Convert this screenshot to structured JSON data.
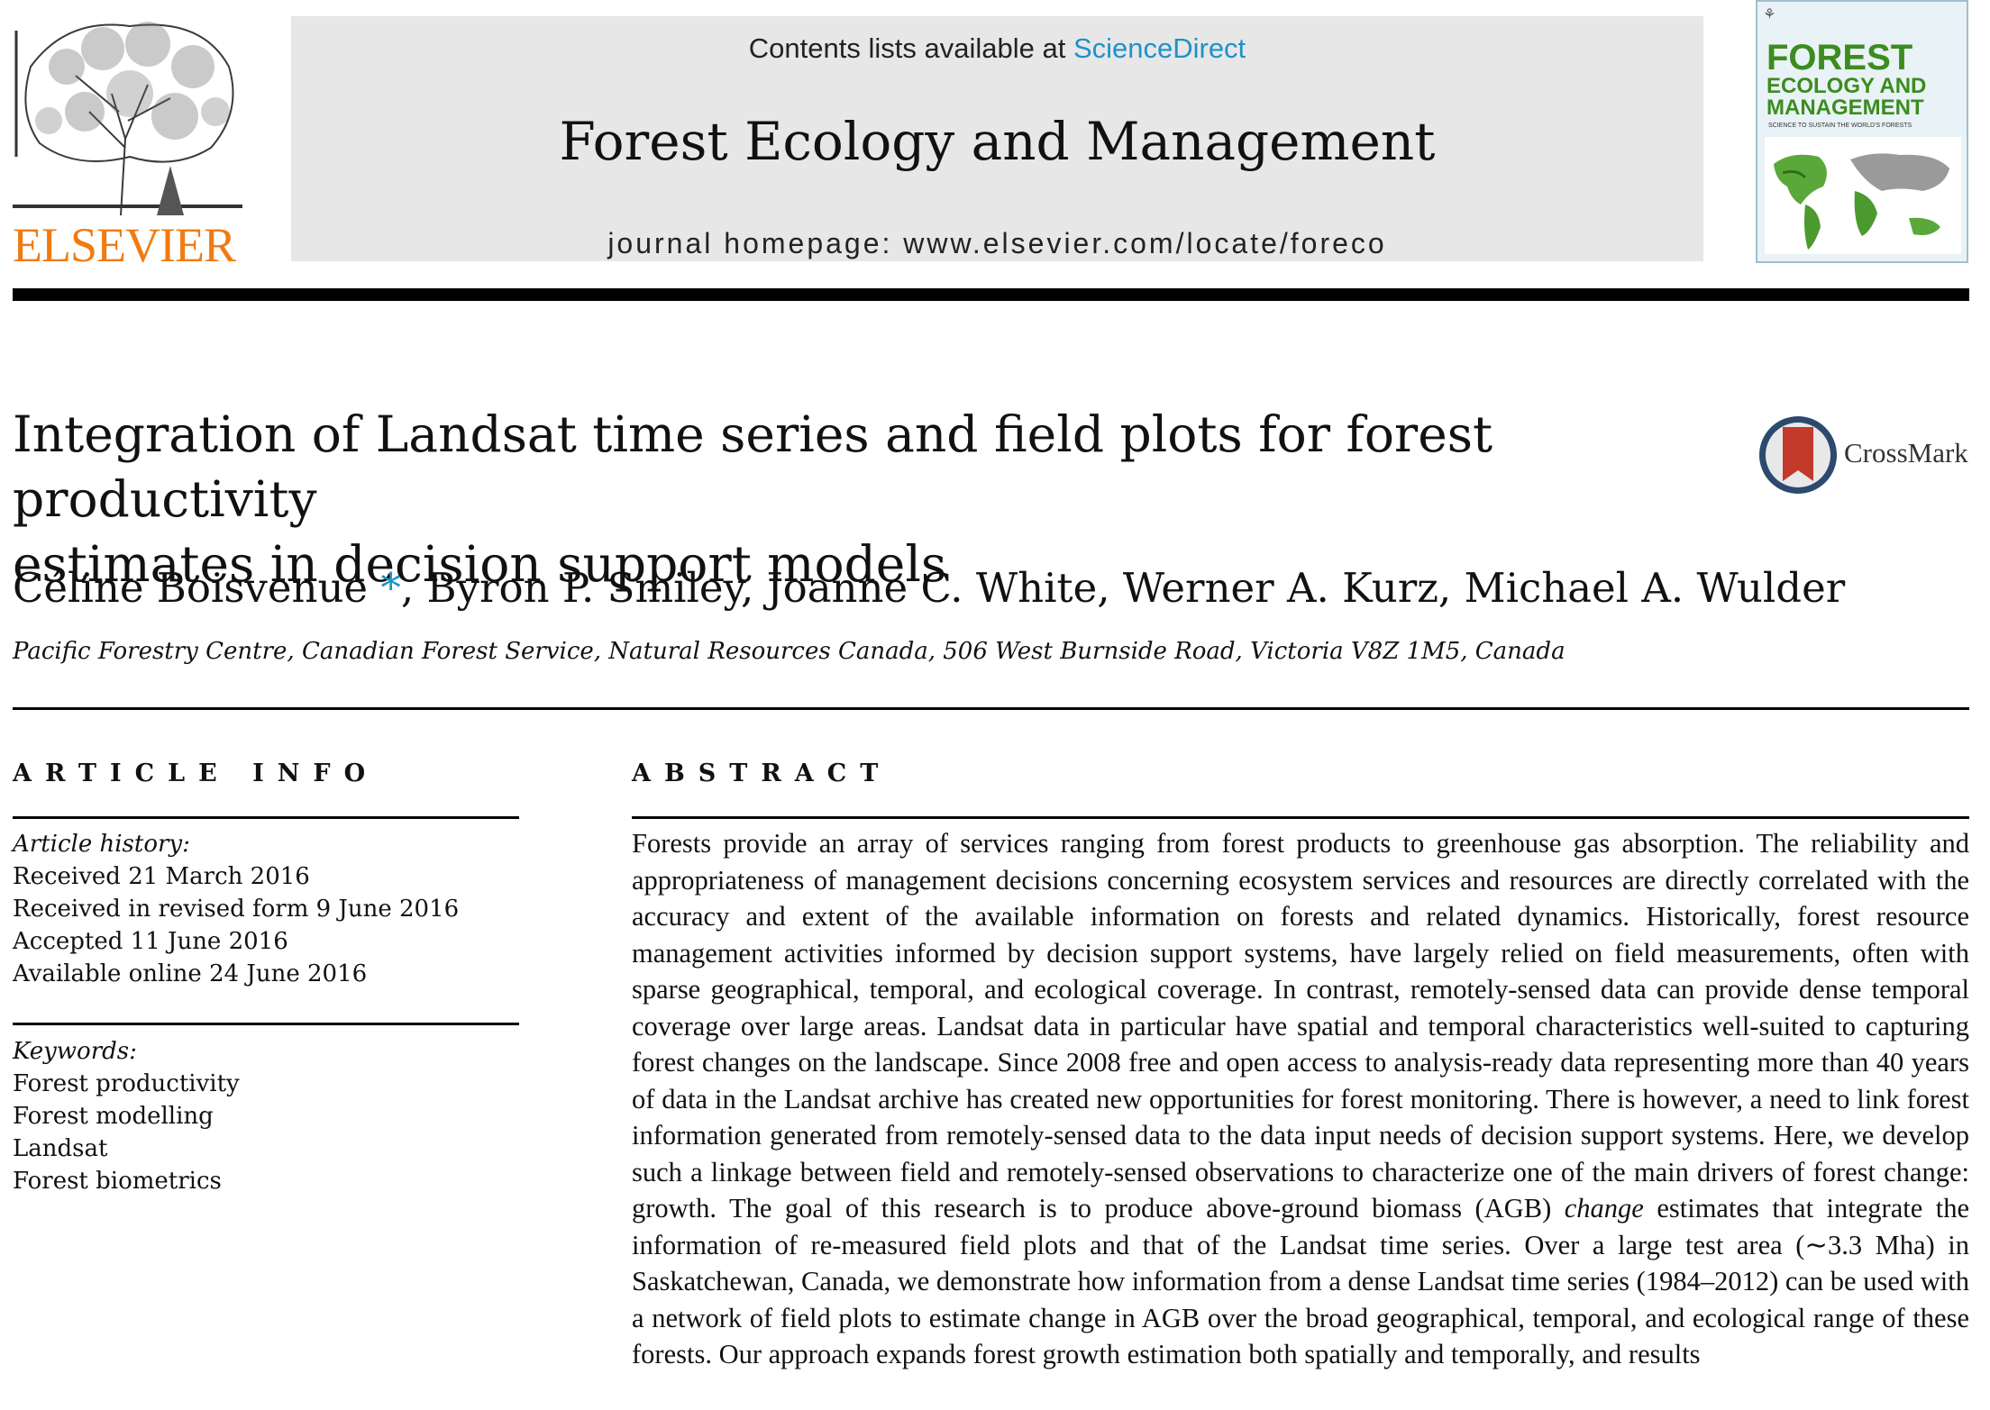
{
  "header": {
    "publisher": "ELSEVIER",
    "contents_prefix": "Contents lists available at ",
    "contents_link": "ScienceDirect",
    "journal_title": "Forest Ecology and Management",
    "homepage": "journal homepage: www.elsevier.com/locate/foreco",
    "cover": {
      "title_line1": "FOREST",
      "title_line2": "ECOLOGY AND",
      "title_line3": "MANAGEMENT",
      "tagline": "SCIENCE TO SUSTAIN THE WORLD'S FORESTS"
    }
  },
  "article": {
    "title_line1": "Integration of Landsat time series and field plots for forest productivity",
    "title_line2": "estimates in decision support models",
    "crossmark_label": "CrossMark",
    "first_author": "Céline Boisvenue",
    "corresponding_marker": "*",
    "other_authors": ", Byron P. Smiley, Joanne C. White, Werner A. Kurz, Michael A. Wulder",
    "affiliation": "Pacific Forestry Centre, Canadian Forest Service, Natural Resources Canada, 506 West Burnside Road, Victoria V8Z 1M5, Canada"
  },
  "article_info": {
    "heading": "ARTICLE INFO",
    "history_label": "Article history:",
    "history": [
      "Received 21 March 2016",
      "Received in revised form 9 June 2016",
      "Accepted 11 June 2016",
      "Available online 24 June 2016"
    ],
    "keywords_label": "Keywords:",
    "keywords": [
      "Forest productivity",
      "Forest modelling",
      "Landsat",
      "Forest biometrics"
    ]
  },
  "abstract": {
    "heading": "ABSTRACT",
    "text_before_change": "Forests provide an array of services ranging from forest products to greenhouse gas absorption. The reliability and appropriateness of management decisions concerning ecosystem services and resources are directly correlated with the accuracy and extent of the available information on forests and related dynamics. Historically, forest resource management activities informed by decision support systems, have largely relied on field measurements, often with sparse geographical, temporal, and ecological coverage. In contrast, remotely-sensed data can provide dense temporal coverage over large areas. Landsat data in particular have spatial and temporal characteristics well-suited to capturing forest changes on the landscape. Since 2008 free and open access to analysis-ready data representing more than 40 years of data in the Landsat archive has created new opportunities for forest monitoring. There is however, a need to link forest information generated from remotely-sensed data to the data input needs of decision support systems. Here, we develop such a linkage between field and remotely-sensed observations to characterize one of the main drivers of forest change: growth. The goal of this research is to produce above-ground biomass (AGB) ",
    "emphasis_word": "change",
    "text_after_change": " estimates that integrate the information of re-measured field plots and that of the Landsat time series. Over a large test area (∼3.3 Mha) in Saskatchewan, Canada, we demonstrate how information from a dense Landsat time series (1984–2012) can be used with a network of field plots to estimate change in AGB over the broad geographical, temporal, and ecological range of these forests. Our approach expands forest growth estimation both spatially and temporally, and results"
  }
}
